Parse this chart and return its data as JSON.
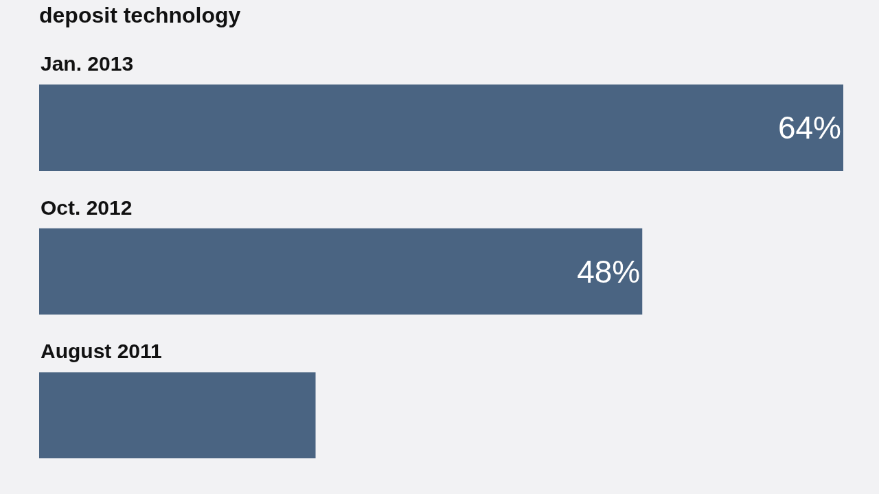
{
  "chart_data": {
    "type": "bar",
    "orientation": "horizontal",
    "title": "deposit technology",
    "categories": [
      "Jan. 2013",
      "Oct. 2012",
      "August 2011"
    ],
    "values": [
      64,
      48,
      22
    ],
    "value_labels": [
      "64%",
      "48%",
      null
    ],
    "color": "#4a6482",
    "xlim": [
      0,
      64
    ],
    "grid": false,
    "legend": false
  }
}
